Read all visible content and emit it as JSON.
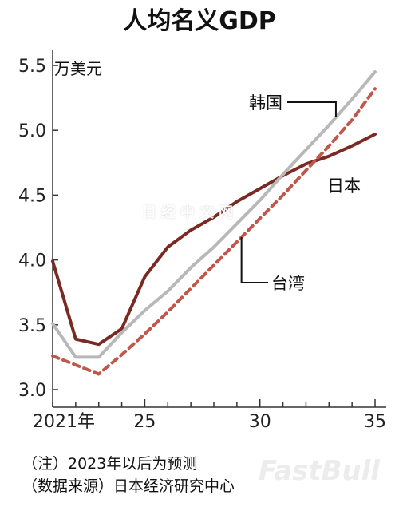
{
  "chart_data": {
    "type": "line",
    "title": "人均名义GDP",
    "unit": "万美元",
    "x": [
      2021,
      2022,
      2023,
      2024,
      2025,
      2026,
      2027,
      2028,
      2029,
      2030,
      2031,
      2032,
      2033,
      2034,
      2035
    ],
    "xticks": [
      {
        "value": 2021,
        "label": "2021年"
      },
      {
        "value": 2025,
        "label": "25"
      },
      {
        "value": 2030,
        "label": "30"
      },
      {
        "value": 2035,
        "label": "35"
      }
    ],
    "yticks": [
      "3.0",
      "3.5",
      "4.0",
      "4.5",
      "5.0",
      "5.5"
    ],
    "ylim": [
      3.0,
      5.5
    ],
    "xlim": [
      2021,
      2035
    ],
    "series": [
      {
        "name": "日本",
        "color": "#7a2a22",
        "style": "solid",
        "values": [
          3.99,
          3.39,
          3.35,
          3.47,
          3.87,
          4.1,
          4.23,
          4.33,
          4.45,
          4.55,
          4.65,
          4.74,
          4.8,
          4.88,
          4.97
        ]
      },
      {
        "name": "韩国",
        "color": "#b8b8b8",
        "style": "solid",
        "values": [
          3.51,
          3.25,
          3.25,
          3.44,
          3.61,
          3.76,
          3.94,
          4.1,
          4.28,
          4.46,
          4.66,
          4.85,
          5.04,
          5.24,
          5.45
        ]
      },
      {
        "name": "台湾",
        "color": "#c0574b",
        "style": "dashed",
        "values": [
          3.26,
          3.19,
          3.12,
          3.27,
          3.43,
          3.6,
          3.78,
          3.96,
          4.14,
          4.32,
          4.5,
          4.69,
          4.88,
          5.08,
          5.32
        ]
      }
    ],
    "grid": false
  },
  "notes": {
    "note1": "（注）2023年以后为预测",
    "note2": "（数据来源）日本经济研究中心"
  },
  "watermark": "日经中文网",
  "watermark2": "FastBull"
}
